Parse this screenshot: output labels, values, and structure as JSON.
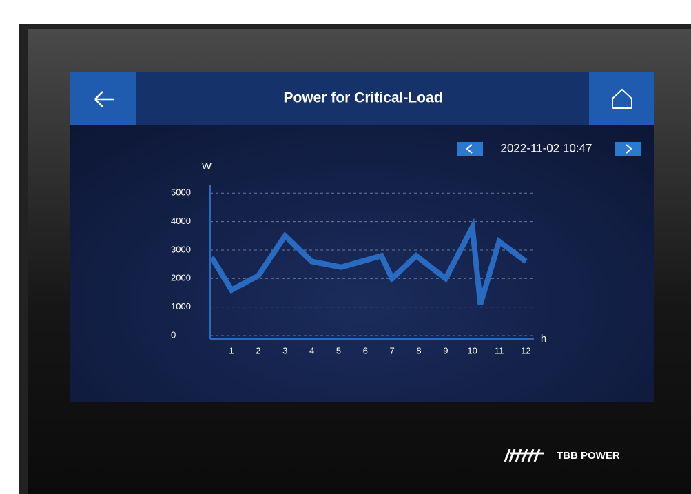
{
  "header": {
    "title": "Power for Critical-Load"
  },
  "date": "2022-11-02 10:47",
  "chart_data": {
    "type": "line",
    "x_label": "h",
    "y_label": "W",
    "x": [
      0.25,
      1,
      2,
      3,
      4,
      5.1,
      6.6,
      7,
      7.9,
      9,
      10,
      10.3,
      11,
      12
    ],
    "values": [
      2750,
      1600,
      2100,
      3500,
      2600,
      2400,
      2800,
      2000,
      2800,
      2000,
      3800,
      1100,
      3300,
      2600
    ],
    "color": "#2a6bc2",
    "xlim": [
      0.2,
      12.3
    ],
    "xticks": [
      1,
      2,
      3,
      4,
      5,
      6,
      7,
      8,
      9,
      10,
      11,
      12
    ],
    "ylim": [
      0,
      5200
    ],
    "yticks": [
      0,
      1000,
      2000,
      3000,
      4000,
      5000
    ],
    "grid": true
  },
  "logo": {
    "text": "TBB POWER"
  }
}
